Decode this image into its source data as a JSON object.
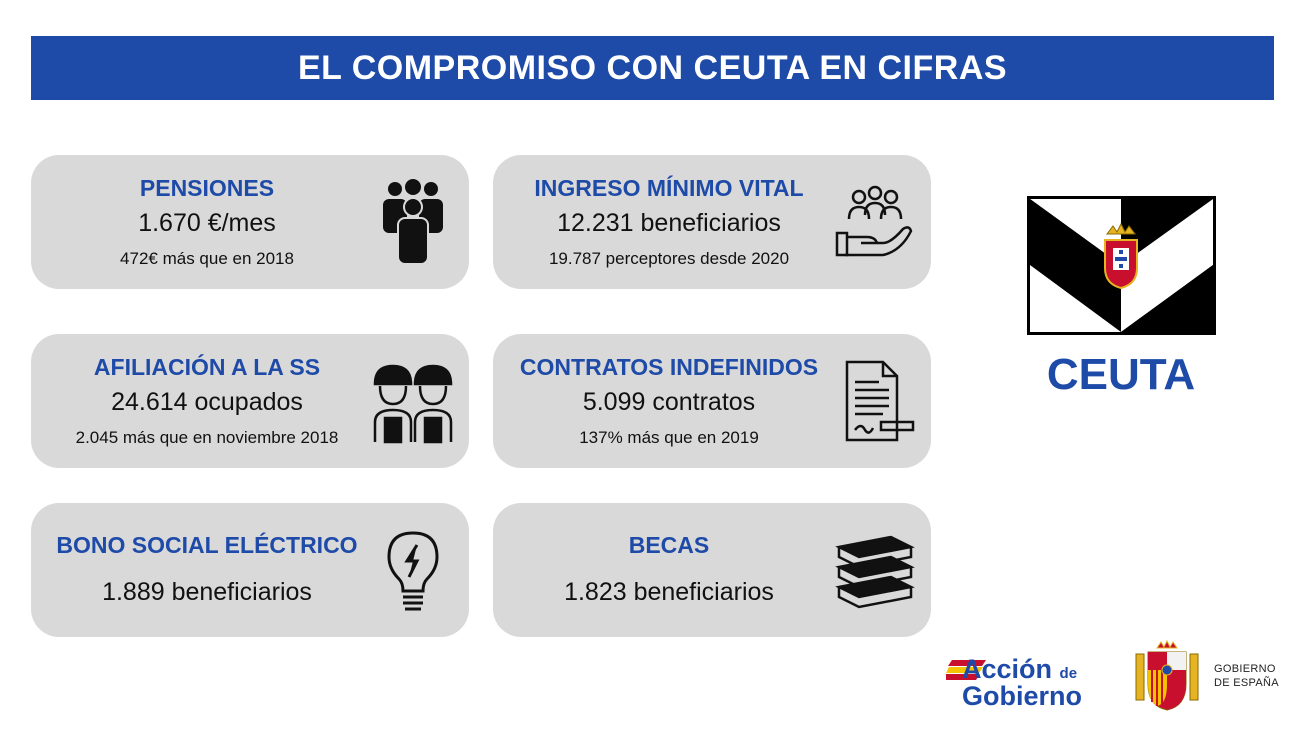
{
  "header": {
    "title": "EL COMPROMISO CON CEUTA EN CIFRAS"
  },
  "cards": [
    {
      "title": "PENSIONES",
      "value": "1.670 €/mes",
      "sub": "472€ más que en 2018",
      "icon": "people-group-icon"
    },
    {
      "title": "INGRESO MÍNIMO VITAL",
      "value": "12.231 beneficiarios",
      "sub": "19.787 perceptores desde 2020",
      "icon": "hand-people-icon"
    },
    {
      "title": "AFILIACIÓN A LA SS",
      "value": "24.614 ocupados",
      "sub": "2.045 más que en noviembre 2018",
      "icon": "workers-icon"
    },
    {
      "title": "CONTRATOS INDEFINIDOS",
      "value": "5.099 contratos",
      "sub": "137% más que en 2019",
      "icon": "contract-icon"
    },
    {
      "title": "BONO SOCIAL ELÉCTRICO",
      "value": "1.889 beneficiarios",
      "icon": "lightbulb-icon"
    },
    {
      "title": "BECAS",
      "value": "1.823 beneficiarios",
      "icon": "books-icon"
    }
  ],
  "region": {
    "name": "CEUTA"
  },
  "footer": {
    "accion": "Acción",
    "de": "de",
    "gobierno": "Gobierno",
    "gob_line1": "GOBIERNO",
    "gob_line2": "DE ESPAÑA"
  },
  "colors": {
    "accent": "#1e4aa8",
    "card": "#d9d9d9"
  }
}
